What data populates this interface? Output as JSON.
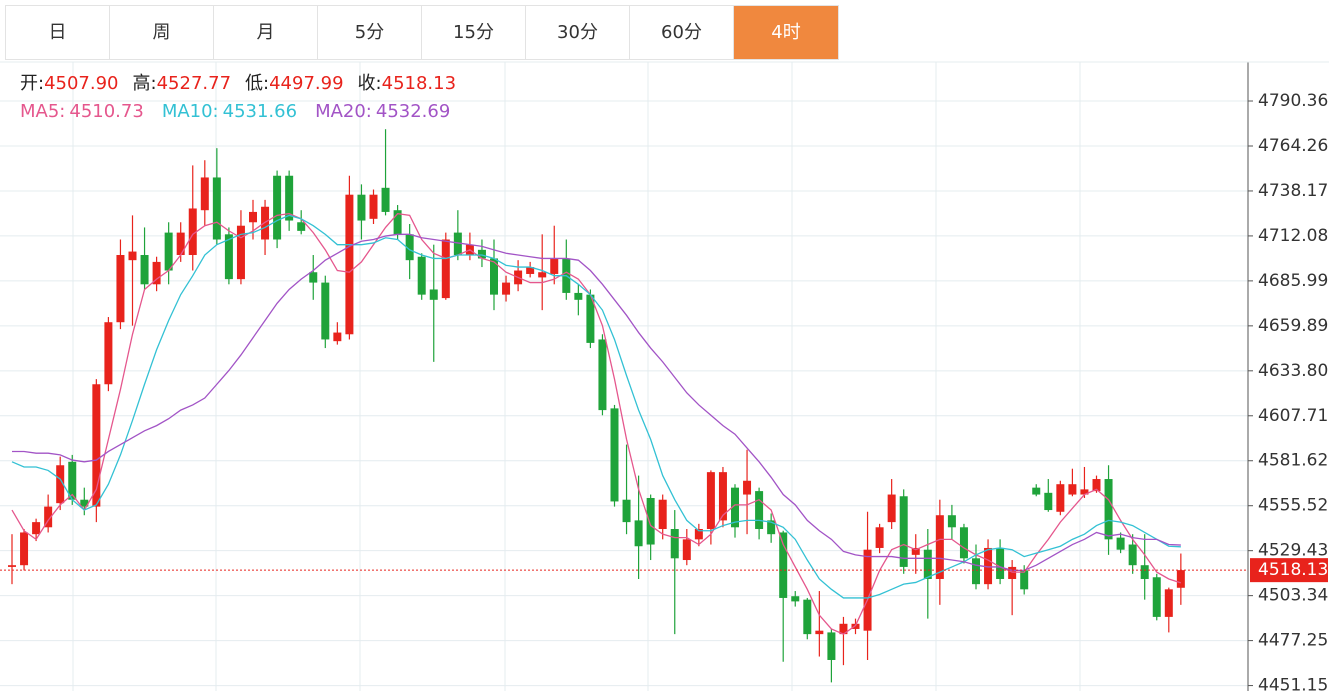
{
  "tabs": [
    "日",
    "周",
    "月",
    "5分",
    "15分",
    "30分",
    "60分",
    "4时"
  ],
  "header": {
    "labels": [
      "开:",
      "高:",
      "低:",
      "收:"
    ],
    "values": [
      "4507.90",
      "4527.77",
      "4497.99",
      "4518.13"
    ]
  },
  "chart_data": {
    "type": "candlestick",
    "up_color": "#e8231c",
    "down_color": "#1fa33a",
    "ylim": [
      4448,
      4813
    ],
    "yticks": [
      4790.36,
      4764.26,
      4738.17,
      4712.08,
      4685.99,
      4659.89,
      {
        "value": 4633.8,
        "label": "4633.80"
      },
      4607.71,
      4581.62,
      4555.52,
      4529.43,
      4503.34,
      4477.25,
      4451.15
    ],
    "grid": true,
    "last_price": {
      "value": 4518.13,
      "label": "4518.13"
    },
    "open": [
      4520,
      4521,
      4539,
      4543,
      4557,
      4581,
      4559,
      4555,
      4626,
      4662,
      4698,
      4701,
      4684,
      4714,
      4701,
      4701,
      4727,
      4746,
      4713,
      4687,
      4720,
      4710,
      4747,
      4747,
      4720,
      4691,
      4685,
      4651,
      4655,
      4736,
      4722,
      4740,
      4727,
      4713,
      4700,
      4681,
      4676,
      4714,
      4701,
      4704,
      4699,
      4678,
      4684,
      4690,
      4688,
      4690,
      4699,
      4679,
      4678,
      4652,
      4612,
      4559,
      4547,
      4560,
      4542,
      4542,
      4524,
      4536,
      4542,
      4547,
      4566,
      4562,
      4564,
      4547,
      4540,
      4503,
      4501,
      4481,
      4482,
      4481,
      4484,
      4483,
      4531,
      4546,
      4561,
      4527,
      4530,
      4513,
      4550,
      4543,
      4525,
      4510,
      4531,
      4513,
      4518,
      4566,
      4563,
      4552,
      4562,
      4562,
      4564,
      4571,
      4537,
      4533,
      4521,
      4514,
      4491,
      4507.9
    ],
    "high": [
      4539,
      4542,
      4548,
      4562,
      4584,
      4585,
      4566,
      4629,
      4665,
      4710,
      4724,
      4717,
      4700,
      4720,
      4720,
      4753,
      4756,
      4763,
      4717,
      4727,
      4733,
      4733,
      4750,
      4750,
      4727,
      4701,
      4689,
      4662,
      4747,
      4742,
      4739,
      4774,
      4730,
      4719,
      4702,
      4707,
      4714,
      4727,
      4714,
      4710,
      4710,
      4689,
      4698,
      4697,
      4713,
      4718,
      4710,
      4684,
      4681,
      4655,
      4614,
      4591,
      4573,
      4562,
      4562,
      4553,
      4542,
      4545,
      4576,
      4578,
      4568,
      4588,
      4566,
      4551,
      4541,
      4506,
      4502,
      4506,
      4484,
      4491,
      4490,
      4552,
      4545,
      4571,
      4565,
      4539,
      4542,
      4559,
      4556,
      4545,
      4533,
      4536,
      4536,
      4524,
      4521,
      4568,
      4571,
      4570,
      4577,
      4578,
      4573,
      4579,
      4540,
      4539,
      4539,
      4516,
      4508,
      4527.77
    ],
    "low": [
      4510,
      4518,
      4535,
      4540,
      4553,
      4556,
      4550,
      4546,
      4622,
      4658,
      4660,
      4681,
      4680,
      4684,
      4697,
      4692,
      4718,
      4707,
      4684,
      4684,
      4710,
      4701,
      4705,
      4715,
      4713,
      4675,
      4647,
      4649,
      4652,
      4710,
      4719,
      4724,
      4710,
      4687,
      4675,
      4639,
      4675,
      4698,
      4698,
      4694,
      4669,
      4674,
      4680,
      4688,
      4669,
      4684,
      4675,
      4666,
      4647,
      4608,
      4555,
      4539,
      4513,
      4524,
      4536,
      4481,
      4521,
      4532,
      4533,
      4543,
      4537,
      4539,
      4536,
      4534,
      4465,
      4497,
      4478,
      4468,
      4453,
      4463,
      4481,
      4466,
      4528,
      4542,
      4516,
      4516,
      4490,
      4498,
      4536,
      4522,
      4507,
      4507,
      4510,
      4492,
      4504,
      4561,
      4552,
      4550,
      4561,
      4560,
      4563,
      4527,
      4528,
      4516,
      4501,
      4489,
      4482,
      4497.99
    ],
    "close": [
      4521,
      4540,
      4546,
      4555,
      4579,
      4559,
      4555,
      4626,
      4662,
      4701,
      4703,
      4684,
      4697,
      4692,
      4714,
      4728,
      4746,
      4710,
      4687,
      4718,
      4726,
      4729,
      4710,
      4721,
      4715,
      4685,
      4652,
      4656,
      4736,
      4721,
      4736,
      4726,
      4713,
      4698,
      4678,
      4675,
      4710,
      4701,
      4707,
      4699,
      4678,
      4685,
      4692,
      4694,
      4691,
      4699,
      4679,
      4675,
      4650,
      4611,
      4558,
      4546,
      4532,
      4533,
      4559,
      4525,
      4536,
      4542,
      4575,
      4575,
      4543,
      4570,
      4542,
      4539,
      4502,
      4500,
      4481,
      4483,
      4466,
      4487,
      4487,
      4530,
      4543,
      4562,
      4520,
      4531,
      4513,
      4550,
      4543,
      4525,
      4510,
      4531,
      4513,
      4520,
      4507,
      4562,
      4553,
      4568,
      4568,
      4565,
      4571,
      4536,
      4530,
      4521,
      4513,
      4491,
      4507,
      4518.13
    ],
    "series": [
      {
        "name": "MA5:",
        "value_label": "4510.73",
        "color": "#e5578d",
        "values": [
          4553,
          4541,
          4536,
          4547,
          4556,
          4562,
          4553,
          4565,
          4594,
          4623,
          4655,
          4681,
          4687,
          4692,
          4701,
          4713,
          4718,
          4720,
          4715,
          4711,
          4715,
          4720,
          4724,
          4725,
          4722,
          4714,
          4704,
          4692,
          4691,
          4697,
          4707,
          4717,
          4725,
          4724,
          4710,
          4702,
          4699,
          4701,
          4704,
          4699,
          4697,
          4691,
          4688,
          4685,
          4685,
          4687,
          4691,
          4687,
          4678,
          4660,
          4629,
          4594,
          4565,
          4544,
          4539,
          4537,
          4537,
          4533,
          4539,
          4550,
          4556,
          4556,
          4559,
          4553,
          4533,
          4520,
          4507,
          4492,
          4484,
          4481,
          4486,
          4501,
          4518,
          4530,
          4533,
          4530,
          4533,
          4536,
          4536,
          4531,
          4527,
          4524,
          4520,
          4517,
          4517,
          4527,
          4536,
          4546,
          4554,
          4562,
          4565,
          4559,
          4547,
          4536,
          4527,
          4517,
          4513,
          4510.73
        ]
      },
      {
        "name": "MA10:",
        "value_label": "4531.66",
        "color": "#33c1d4",
        "values": [
          4581,
          4578,
          4578,
          4576,
          4571,
          4559,
          4553,
          4556,
          4568,
          4585,
          4605,
          4626,
          4646,
          4663,
          4678,
          4689,
          4701,
          4707,
          4710,
          4713,
          4714,
          4717,
          4721,
          4724,
          4722,
          4718,
          4713,
          4707,
          4707,
          4707,
          4708,
          4711,
          4710,
          4704,
          4701,
          4699,
          4699,
          4701,
          4701,
          4701,
          4699,
          4695,
          4694,
          4694,
          4692,
          4689,
          4689,
          4684,
          4678,
          4669,
          4652,
          4631,
          4611,
          4594,
          4573,
          4559,
          4547,
          4541,
          4541,
          4544,
          4546,
          4547,
          4547,
          4546,
          4543,
          4536,
          4524,
          4513,
          4507,
          4502,
          4502,
          4502,
          4504,
          4507,
          4510,
          4511,
          4514,
          4517,
          4520,
          4523,
          4527,
          4530,
          4531,
          4530,
          4526,
          4528,
          4530,
          4532,
          4536,
          4539,
          4544,
          4547,
          4546,
          4544,
          4540,
          4536,
          4532,
          4531.66
        ]
      },
      {
        "name": "MA20:",
        "value_label": "4532.69",
        "color": "#a254c6",
        "values": [
          4587,
          4587,
          4586,
          4586,
          4585,
          4582,
          4581,
          4582,
          4587,
          4591,
          4595,
          4599,
          4602,
          4606,
          4611,
          4614,
          4618,
          4626,
          4634,
          4643,
          4653,
          4663,
          4673,
          4681,
          4687,
          4692,
          4698,
          4702,
          4706,
          4709,
          4710,
          4712,
          4713,
          4713,
          4711,
          4710,
          4709,
          4708,
          4707,
          4706,
          4704,
          4702,
          4701,
          4700,
          4699,
          4699,
          4699,
          4698,
          4692,
          4684,
          4675,
          4666,
          4656,
          4647,
          4639,
          4630,
          4621,
          4614,
          4608,
          4602,
          4597,
          4589,
          4581,
          4572,
          4562,
          4556,
          4547,
          4541,
          4536,
          4529,
          4527,
          4526,
          4526,
          4526,
          4525,
          4525,
          4525,
          4525,
          4524,
          4523,
          4521,
          4520,
          4520,
          4518,
          4518,
          4521,
          4525,
          4529,
          4533,
          4536,
          4540,
          4538,
          4539,
          4537,
          4536,
          4536,
          4533,
          4532.69
        ]
      }
    ]
  }
}
